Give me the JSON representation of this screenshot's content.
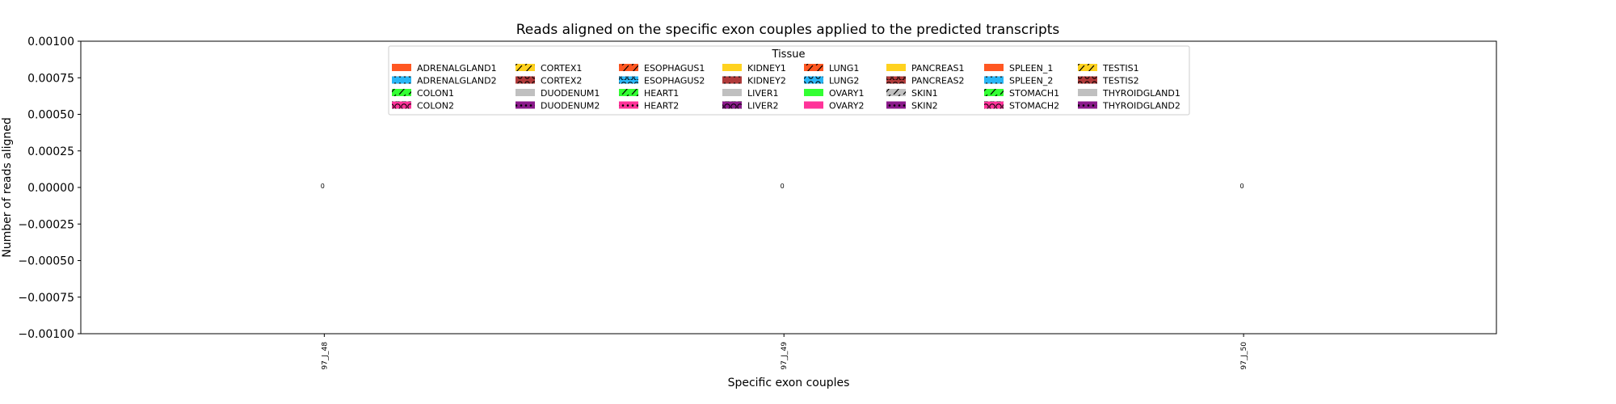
{
  "chart_data": {
    "type": "bar",
    "title": "Reads aligned on the specific exon couples applied to the predicted transcripts",
    "xlabel": "Specific exon couples",
    "ylabel": "Number of reads aligned",
    "categories": [
      "97_J_48",
      "97_J_49",
      "97_J_50"
    ],
    "ylim": [
      -0.001,
      0.001
    ],
    "yticks": [
      {
        "value": 0.001,
        "label": "0.00100"
      },
      {
        "value": 0.00075,
        "label": "0.00075"
      },
      {
        "value": 0.0005,
        "label": "0.00050"
      },
      {
        "value": 0.00025,
        "label": "0.00025"
      },
      {
        "value": 0.0,
        "label": "0.00000"
      },
      {
        "value": -0.00025,
        "label": "−0.00025"
      },
      {
        "value": -0.0005,
        "label": "−0.00050"
      },
      {
        "value": -0.00075,
        "label": "−0.00075"
      },
      {
        "value": -0.001,
        "label": "−0.00100"
      }
    ],
    "data_labels": [
      "0",
      "0",
      "0"
    ],
    "grid": false,
    "legend": {
      "title": "Tissue",
      "placement": "top-center",
      "columns": 8,
      "entries": [
        {
          "label": "ADRENALGLAND1",
          "color": "#ff5722",
          "hatch": "none"
        },
        {
          "label": "ADRENALGLAND2",
          "color": "#29b6f6",
          "hatch": "dots"
        },
        {
          "label": "COLON1",
          "color": "#33ff33",
          "hatch": "slash"
        },
        {
          "label": "COLON2",
          "color": "#ff3399",
          "hatch": "circles"
        },
        {
          "label": "CORTEX1",
          "color": "#ffd21f",
          "hatch": "slash"
        },
        {
          "label": "CORTEX2",
          "color": "#b03a3a",
          "hatch": "rings"
        },
        {
          "label": "DUODENUM1",
          "color": "#c0c0c0",
          "hatch": "none"
        },
        {
          "label": "DUODENUM2",
          "color": "#8b1a8b",
          "hatch": "dots"
        },
        {
          "label": "ESOPHAGUS1",
          "color": "#ff5722",
          "hatch": "slash"
        },
        {
          "label": "ESOPHAGUS2",
          "color": "#29b6f6",
          "hatch": "circles"
        },
        {
          "label": "HEART1",
          "color": "#33ff33",
          "hatch": "slash"
        },
        {
          "label": "HEART2",
          "color": "#ff3399",
          "hatch": "dots"
        },
        {
          "label": "KIDNEY1",
          "color": "#ffd21f",
          "hatch": "none"
        },
        {
          "label": "KIDNEY2",
          "color": "#b03a3a",
          "hatch": "dots"
        },
        {
          "label": "LIVER1",
          "color": "#c0c0c0",
          "hatch": "none"
        },
        {
          "label": "LIVER2",
          "color": "#8b1a8b",
          "hatch": "circles"
        },
        {
          "label": "LUNG1",
          "color": "#ff5722",
          "hatch": "slash"
        },
        {
          "label": "LUNG2",
          "color": "#29b6f6",
          "hatch": "rings"
        },
        {
          "label": "OVARY1",
          "color": "#33ff33",
          "hatch": "none"
        },
        {
          "label": "OVARY2",
          "color": "#ff3399",
          "hatch": "none"
        },
        {
          "label": "PANCREAS1",
          "color": "#ffd21f",
          "hatch": "none"
        },
        {
          "label": "PANCREAS2",
          "color": "#b03a3a",
          "hatch": "circles"
        },
        {
          "label": "SKIN1",
          "color": "#c0c0c0",
          "hatch": "slash"
        },
        {
          "label": "SKIN2",
          "color": "#8b1a8b",
          "hatch": "dots"
        },
        {
          "label": "SPLEEN_1",
          "color": "#ff5722",
          "hatch": "none"
        },
        {
          "label": "SPLEEN_2",
          "color": "#29b6f6",
          "hatch": "dots"
        },
        {
          "label": "STOMACH1",
          "color": "#33ff33",
          "hatch": "slash"
        },
        {
          "label": "STOMACH2",
          "color": "#ff3399",
          "hatch": "circles"
        },
        {
          "label": "TESTIS1",
          "color": "#ffd21f",
          "hatch": "slash"
        },
        {
          "label": "TESTIS2",
          "color": "#b03a3a",
          "hatch": "rings"
        },
        {
          "label": "THYROIDGLAND1",
          "color": "#c0c0c0",
          "hatch": "none"
        },
        {
          "label": "THYROIDGLAND2",
          "color": "#8b1a8b",
          "hatch": "dots"
        }
      ]
    }
  }
}
